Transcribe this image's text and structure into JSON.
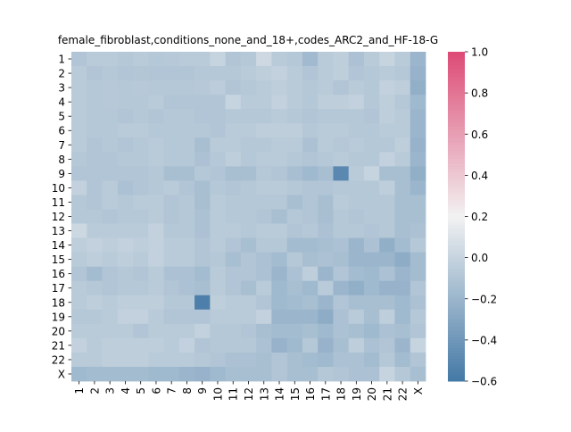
{
  "chart_data": {
    "type": "heatmap",
    "title": "female_fibroblast,conditions_none_and_18+,codes_ARC2_and_HF-18-G",
    "xlabel": "",
    "ylabel": "",
    "row_labels": [
      "1",
      "2",
      "3",
      "4",
      "5",
      "6",
      "7",
      "8",
      "9",
      "10",
      "11",
      "12",
      "13",
      "14",
      "15",
      "16",
      "17",
      "18",
      "19",
      "20",
      "21",
      "22",
      "X"
    ],
    "col_labels": [
      "1",
      "2",
      "3",
      "4",
      "5",
      "6",
      "7",
      "8",
      "9",
      "10",
      "11",
      "12",
      "13",
      "14",
      "15",
      "16",
      "17",
      "18",
      "19",
      "20",
      "21",
      "22",
      "X"
    ],
    "colorbar": {
      "vmin": -0.6,
      "vmax": 1.0,
      "ticks": [
        "−0.6",
        "−0.4",
        "−0.2",
        "0.0",
        "0.2",
        "0.4",
        "0.6",
        "0.8",
        "1.0"
      ],
      "tick_values": [
        -0.6,
        -0.4,
        -0.2,
        0.0,
        0.2,
        0.4,
        0.6,
        0.8,
        1.0
      ],
      "colors": {
        "low": "#4479a6",
        "mid": "#f2f2f2",
        "high": "#dd4a75"
      }
    },
    "values": [
      [
        -0.1,
        -0.06,
        -0.06,
        -0.08,
        -0.06,
        -0.08,
        -0.07,
        -0.06,
        -0.06,
        0.0,
        -0.1,
        -0.08,
        0.03,
        -0.06,
        -0.08,
        -0.17,
        -0.06,
        -0.04,
        -0.12,
        -0.06,
        0.0,
        -0.06,
        -0.2
      ],
      [
        -0.06,
        -0.1,
        -0.08,
        -0.1,
        -0.09,
        -0.1,
        -0.1,
        -0.1,
        -0.08,
        -0.08,
        -0.08,
        -0.06,
        -0.04,
        -0.02,
        -0.06,
        -0.1,
        -0.06,
        -0.04,
        -0.1,
        -0.08,
        -0.06,
        -0.08,
        -0.22
      ],
      [
        -0.06,
        -0.08,
        -0.07,
        -0.08,
        -0.07,
        -0.08,
        -0.08,
        -0.08,
        -0.07,
        -0.05,
        -0.1,
        -0.08,
        -0.06,
        -0.04,
        -0.06,
        -0.08,
        -0.06,
        -0.1,
        -0.06,
        -0.08,
        -0.02,
        -0.04,
        -0.24
      ],
      [
        -0.06,
        -0.08,
        -0.07,
        -0.08,
        -0.08,
        -0.06,
        -0.1,
        -0.1,
        -0.1,
        -0.1,
        0.0,
        -0.06,
        -0.06,
        -0.02,
        -0.06,
        -0.08,
        -0.04,
        -0.04,
        -0.02,
        -0.08,
        -0.04,
        -0.08,
        -0.18
      ],
      [
        -0.06,
        -0.08,
        -0.08,
        -0.1,
        -0.08,
        -0.1,
        -0.08,
        -0.08,
        -0.1,
        -0.1,
        -0.08,
        -0.08,
        -0.08,
        -0.06,
        -0.08,
        -0.1,
        -0.08,
        -0.08,
        -0.08,
        -0.1,
        -0.04,
        -0.06,
        -0.2
      ],
      [
        -0.06,
        -0.08,
        -0.08,
        -0.06,
        -0.06,
        -0.08,
        -0.08,
        -0.08,
        -0.08,
        -0.1,
        -0.06,
        -0.06,
        -0.04,
        -0.04,
        -0.04,
        -0.08,
        -0.06,
        -0.06,
        -0.08,
        -0.08,
        -0.06,
        -0.06,
        -0.2
      ],
      [
        -0.06,
        -0.1,
        -0.08,
        -0.1,
        -0.08,
        -0.06,
        -0.08,
        -0.08,
        -0.14,
        -0.06,
        -0.06,
        -0.08,
        -0.08,
        -0.06,
        -0.06,
        -0.12,
        -0.06,
        -0.08,
        -0.06,
        -0.08,
        -0.08,
        -0.04,
        -0.22
      ],
      [
        -0.08,
        -0.1,
        -0.1,
        -0.08,
        -0.08,
        -0.06,
        -0.08,
        -0.08,
        -0.12,
        -0.08,
        -0.04,
        -0.08,
        -0.06,
        -0.06,
        -0.08,
        -0.1,
        -0.08,
        -0.06,
        -0.08,
        -0.08,
        -0.02,
        -0.06,
        -0.2
      ],
      [
        -0.1,
        -0.1,
        -0.1,
        -0.1,
        -0.1,
        -0.08,
        -0.14,
        -0.14,
        -0.08,
        -0.1,
        -0.14,
        -0.14,
        -0.08,
        -0.1,
        -0.14,
        -0.18,
        -0.14,
        -0.5,
        -0.06,
        0.0,
        -0.14,
        -0.14,
        -0.24
      ],
      [
        -0.02,
        -0.1,
        -0.06,
        -0.12,
        -0.1,
        -0.08,
        -0.06,
        -0.1,
        -0.14,
        -0.08,
        -0.1,
        -0.08,
        -0.06,
        -0.06,
        -0.08,
        -0.1,
        -0.1,
        -0.08,
        -0.08,
        -0.08,
        -0.04,
        -0.14,
        -0.2
      ],
      [
        -0.08,
        -0.1,
        -0.06,
        -0.08,
        -0.06,
        -0.06,
        -0.1,
        -0.08,
        -0.14,
        -0.06,
        -0.08,
        -0.08,
        -0.08,
        -0.08,
        -0.14,
        -0.1,
        -0.14,
        -0.06,
        -0.08,
        -0.08,
        -0.08,
        -0.14,
        -0.14
      ],
      [
        -0.08,
        -0.08,
        -0.1,
        -0.08,
        -0.08,
        -0.06,
        -0.1,
        -0.08,
        -0.12,
        -0.06,
        -0.08,
        -0.08,
        -0.1,
        -0.14,
        -0.08,
        -0.1,
        -0.14,
        -0.08,
        -0.1,
        -0.08,
        -0.08,
        -0.14,
        -0.14
      ],
      [
        0.02,
        -0.06,
        -0.06,
        -0.06,
        -0.06,
        -0.02,
        -0.08,
        -0.08,
        -0.12,
        -0.06,
        -0.06,
        -0.08,
        -0.06,
        -0.06,
        -0.1,
        -0.08,
        -0.12,
        -0.08,
        -0.08,
        -0.1,
        -0.08,
        -0.14,
        -0.12
      ],
      [
        -0.04,
        -0.02,
        -0.04,
        -0.02,
        -0.04,
        -0.02,
        -0.06,
        -0.06,
        -0.1,
        -0.06,
        -0.1,
        -0.14,
        -0.08,
        -0.08,
        -0.16,
        -0.16,
        -0.14,
        -0.12,
        -0.2,
        -0.12,
        -0.24,
        -0.16,
        -0.08
      ],
      [
        -0.06,
        -0.04,
        -0.06,
        -0.04,
        -0.06,
        -0.02,
        -0.06,
        -0.06,
        -0.1,
        -0.08,
        -0.14,
        -0.1,
        -0.12,
        -0.16,
        -0.08,
        -0.14,
        -0.12,
        -0.14,
        -0.2,
        -0.2,
        -0.2,
        -0.26,
        -0.16
      ],
      [
        -0.1,
        -0.16,
        -0.1,
        -0.08,
        -0.1,
        -0.06,
        -0.12,
        -0.12,
        -0.16,
        -0.06,
        -0.1,
        -0.1,
        -0.12,
        -0.2,
        -0.12,
        -0.04,
        -0.2,
        -0.1,
        -0.16,
        -0.18,
        -0.12,
        -0.2,
        -0.16
      ],
      [
        -0.06,
        -0.08,
        -0.1,
        -0.08,
        -0.08,
        -0.06,
        -0.1,
        -0.12,
        -0.14,
        -0.06,
        -0.1,
        -0.14,
        -0.06,
        -0.18,
        -0.14,
        -0.18,
        -0.06,
        -0.2,
        -0.24,
        -0.18,
        -0.22,
        -0.22,
        -0.1
      ],
      [
        -0.06,
        -0.04,
        -0.06,
        -0.04,
        -0.04,
        -0.04,
        -0.08,
        -0.08,
        -0.56,
        -0.04,
        -0.06,
        -0.06,
        -0.1,
        -0.18,
        -0.16,
        -0.14,
        -0.2,
        -0.1,
        -0.14,
        -0.14,
        -0.14,
        -0.18,
        -0.12
      ],
      [
        -0.08,
        -0.08,
        -0.06,
        -0.02,
        -0.02,
        -0.06,
        -0.1,
        -0.1,
        -0.1,
        -0.06,
        -0.06,
        -0.06,
        -0.02,
        -0.2,
        -0.2,
        -0.2,
        -0.26,
        -0.12,
        -0.06,
        -0.14,
        -0.04,
        -0.18,
        -0.08
      ],
      [
        -0.06,
        -0.06,
        -0.06,
        -0.06,
        -0.1,
        -0.06,
        -0.06,
        -0.06,
        -0.02,
        -0.08,
        -0.08,
        -0.1,
        -0.14,
        -0.16,
        -0.16,
        -0.14,
        -0.18,
        -0.12,
        -0.14,
        -0.18,
        -0.12,
        -0.14,
        -0.1
      ],
      [
        -0.02,
        -0.06,
        -0.04,
        -0.04,
        -0.04,
        -0.04,
        -0.06,
        -0.02,
        -0.1,
        -0.08,
        -0.08,
        -0.08,
        -0.12,
        -0.22,
        -0.18,
        -0.08,
        -0.22,
        -0.14,
        -0.04,
        -0.12,
        -0.1,
        -0.2,
        0.0
      ],
      [
        -0.06,
        -0.06,
        -0.04,
        -0.04,
        -0.04,
        -0.06,
        -0.06,
        -0.06,
        -0.08,
        -0.1,
        -0.12,
        -0.12,
        -0.14,
        -0.1,
        -0.14,
        -0.16,
        -0.18,
        -0.12,
        -0.12,
        -0.16,
        -0.08,
        -0.16,
        -0.1
      ],
      [
        -0.18,
        -0.16,
        -0.16,
        -0.16,
        -0.16,
        -0.18,
        -0.18,
        -0.2,
        -0.22,
        -0.18,
        -0.14,
        -0.14,
        -0.14,
        -0.1,
        -0.14,
        -0.14,
        -0.08,
        -0.1,
        -0.12,
        -0.12,
        0.0,
        -0.08,
        -0.14
      ]
    ]
  }
}
